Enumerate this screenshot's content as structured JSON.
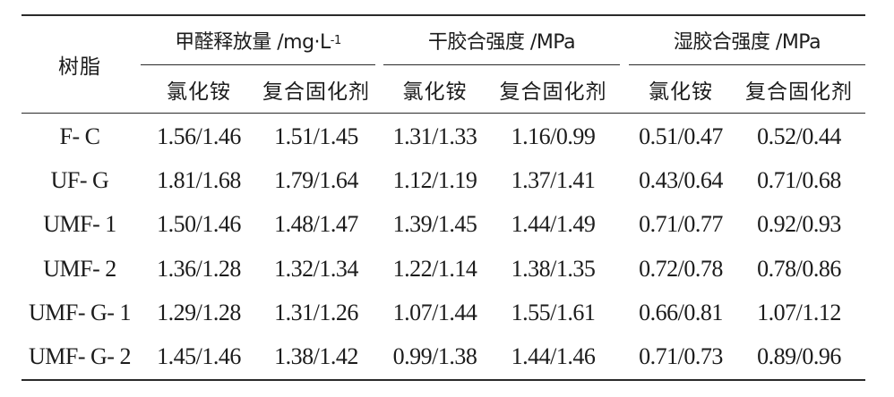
{
  "table": {
    "row_header": "树脂",
    "groups": [
      {
        "title": "甲醛释放量 /mg·L",
        "title_sup": "-1"
      },
      {
        "title": "干胶合强度 /MPa"
      },
      {
        "title": "湿胶合强度 /MPa"
      }
    ],
    "subheaders": [
      "氯化铵",
      "复合固化剂",
      "氯化铵",
      "复合固化剂",
      "氯化铵",
      "复合固化剂"
    ],
    "rows": [
      {
        "name": "F- C",
        "values": [
          "1.56/1.46",
          "1.51/1.45",
          "1.31/1.33",
          "1.16/0.99",
          "0.51/0.47",
          "0.52/0.44"
        ]
      },
      {
        "name": "UF- G",
        "values": [
          "1.81/1.68",
          "1.79/1.64",
          "1.12/1.19",
          "1.37/1.41",
          "0.43/0.64",
          "0.71/0.68"
        ]
      },
      {
        "name": "UMF- 1",
        "values": [
          "1.50/1.46",
          "1.48/1.47",
          "1.39/1.45",
          "1.44/1.49",
          "0.71/0.77",
          "0.92/0.93"
        ]
      },
      {
        "name": "UMF- 2",
        "values": [
          "1.36/1.28",
          "1.32/1.34",
          "1.22/1.14",
          "1.38/1.35",
          "0.72/0.78",
          "0.78/0.86"
        ]
      },
      {
        "name": "UMF- G- 1",
        "values": [
          "1.29/1.28",
          "1.31/1.26",
          "1.07/1.44",
          "1.55/1.61",
          "0.66/0.81",
          "1.07/1.12"
        ]
      },
      {
        "name": "UMF- G- 2",
        "values": [
          "1.45/1.46",
          "1.38/1.42",
          "0.99/1.38",
          "1.44/1.46",
          "0.71/0.73",
          "0.89/0.96"
        ]
      }
    ]
  }
}
